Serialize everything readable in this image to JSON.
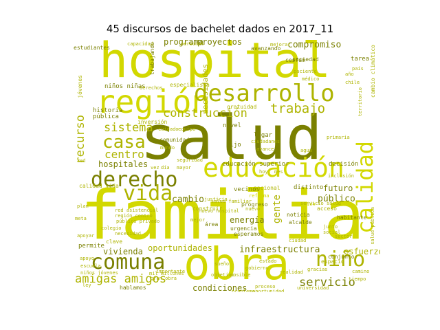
{
  "title": "45 discursos de bachelet dados en 2017_11",
  "colors": {
    "bright": "#d2d800",
    "mid": "#aeb400",
    "dark": "#7a8000"
  },
  "words": {
    "salud": "salud",
    "familia": "familia",
    "hospital": "hospital",
    "obra": "obra",
    "region": "región",
    "desarrollo": "desarrollo",
    "educacion": "educación",
    "derecho": "derecho",
    "comuna": "comuna",
    "calidad": "calidad",
    "nino": "niño",
    "casa": "casa",
    "vida": "vida",
    "trabajo": "trabajo",
    "construccion": "construcción",
    "sistema": "sistema",
    "amigas_amigos": "amigas amigos",
    "servicio": "servicio",
    "centro": "centro",
    "hospitales": "hospitales",
    "recurso": "recurso",
    "programa": "programa",
    "proyectos": "proyectos",
    "compromiso": "compromiso",
    "necesidades": "necesidades",
    "cambio": "cambio",
    "publico": "público",
    "futuro": "futuro",
    "energia": "energía",
    "gente": "gente",
    "infraestructura": "infraestructura",
    "oportunidades": "oportunidades",
    "vivienda": "vivienda",
    "esfuerzo": "esfuerzo",
    "condiciones": "condiciones",
    "educacion_superior": "educación superior",
    "ninos_ninas": "niños niñas",
    "comunidad": "comunidad",
    "decision": "decisión",
    "tarea": "tarea",
    "vecinos": "vecinos",
    "distinto": "distinto",
    "nivel": "nivel",
    "hijo": "hijo",
    "lugar": "lugar",
    "historia": "historia",
    "publica": "pública",
    "inversion": "inversión",
    "especialista": "especialista",
    "gratuidad": "gratuidad",
    "mujeres": "mujeres",
    "nacional": "nacional",
    "clave": "clave",
    "permite": "permite",
    "habitante": "habitante",
    "conjunto": "conjunto",
    "urgencia": "urgencia",
    "esperamos": "esperamos",
    "noticia": "noticia",
    "alcalde": "alcalde",
    "area": "área",
    "progreso": "progreso",
    "estudiantes": "estudiantes",
    "capacidad": "capacidad",
    "trabajando": "trabajando",
    "jovenes": "jóvenes",
    "avanzando": "avanzando",
    "sociedad": "sociedad",
    "cesfam": "cesfam",
    "calidad_vida": "calidad vida",
    "construir": "construir",
    "cambio_climatico": "cambio climático",
    "acceso": "acceso",
    "sector": "sector",
    "hablamos": "hablamos",
    "espacio": "espacio",
    "ciudad": "ciudad",
    "paciente": "paciente",
    "avance": "avance",
    "universidad": "universidad",
    "salud_publica": "salud pública",
    "colegio": "colegio",
    "proceso": "proceso",
    "apoyo": "apoyo",
    "ley": "ley",
    "personas": "personas",
    "pais": "país",
    "medico": "médico",
    "primaria": "primaria",
    "inclusion": "inclusión",
    "agua": "agua",
    "chile": "chile",
    "territorio": "territorio",
    "mejorar": "mejorar",
    "ano": "año",
    "atencion": "atención",
    "reforma": "reforma",
    "cuidado": "cuidado",
    "equipo": "equipo",
    "mundo": "mundo",
    "ciudadanos": "ciudadanos",
    "derechos": "derechos",
    "justicia": "justicia",
    "seguridad": "seguridad",
    "escuela": "escuela",
    "sueno": "sueño",
    "importante": "importante",
    "gobierno": "gobierno",
    "estado": "estado",
    "camino": "camino",
    "tiempo": "tiempo",
    "meta": "meta",
    "plan": "plan",
    "red": "red",
    "vez": "vez",
    "dia": "día",
    "hoy": "hoy",
    "mes": "mes",
    "mayor": "mayor",
    "mejor": "mejor",
    "nuevo": "nuevo",
    "gracias": "gracias",
    "junto": "junto",
    "social": "social",
    "apoyar": "apoyar",
    "necesidad": "necesidad",
    "objetivo": "objetivo",
    "posible": "posible",
    "realidad": "realidad",
    "oportunidad": "oportunidad",
    "problema": "problema",
    "region_centro": "región centro",
    "publico_privado": "público privado",
    "servicio_salud": "servicio salud",
    "red_asistencial": "red asistencial",
    "nuevo_hospital": "nuevo hospital",
    "salud_familiar": "salud familiar",
    "ninos_jovenes": "niños jóvenes",
    "gran_obra": "gran obra",
    "mil_millones": "mil millones"
  }
}
